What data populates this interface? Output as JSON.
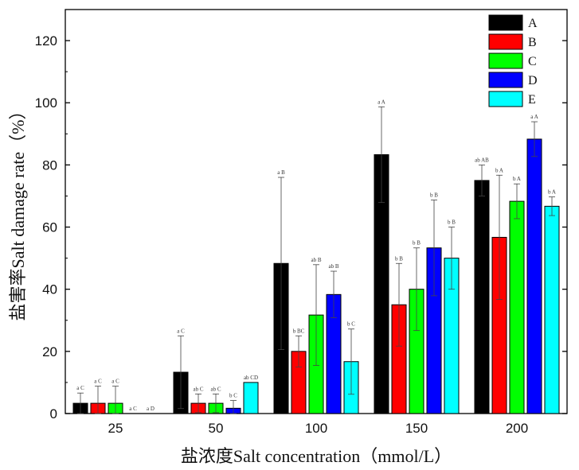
{
  "chart_data": {
    "type": "bar",
    "xlabel": "盐浓度Salt concentration（mmol/L）",
    "ylabel": "盐害率Salt damage rate（%）",
    "categories": [
      "25",
      "50",
      "100",
      "150",
      "200"
    ],
    "ylim": [
      0,
      130
    ],
    "yticks": [
      0,
      20,
      40,
      60,
      80,
      100,
      120
    ],
    "legend_position": "top-right",
    "series": [
      {
        "name": "A",
        "color": "#000000",
        "values": [
          3.3,
          13.3,
          48.3,
          83.3,
          75.0
        ],
        "error": [
          3.3,
          11.7,
          27.7,
          15.4,
          5.0
        ],
        "labels": [
          "a C",
          "a C",
          "a B",
          "a A",
          "ab AB"
        ]
      },
      {
        "name": "B",
        "color": "#ff0000",
        "values": [
          3.3,
          3.3,
          20.0,
          35.0,
          56.7
        ],
        "error": [
          5.5,
          3.0,
          5.0,
          13.3,
          20.0
        ],
        "labels": [
          "a C",
          "ab C",
          "b BC",
          "b B",
          "b A"
        ]
      },
      {
        "name": "C",
        "color": "#00ff00",
        "values": [
          3.3,
          3.3,
          31.7,
          40.0,
          68.3
        ],
        "error": [
          5.5,
          3.0,
          16.2,
          13.3,
          5.6
        ],
        "labels": [
          "a C",
          "ab C",
          "ab B",
          "b B",
          "b A"
        ]
      },
      {
        "name": "D",
        "color": "#0000ff",
        "values": [
          0,
          1.7,
          38.3,
          53.3,
          88.3
        ],
        "error": [
          0,
          2.5,
          7.5,
          15.4,
          5.6
        ],
        "labels": [
          "a C",
          "b C",
          "ab B",
          "b B",
          "a A"
        ]
      },
      {
        "name": "E",
        "color": "#00ffff",
        "values": [
          0,
          10.0,
          16.7,
          50.0,
          66.7
        ],
        "error": [
          0,
          0,
          10.5,
          10.0,
          3.0
        ],
        "labels": [
          "a D",
          "ab CD",
          "b C",
          "b B",
          "b A"
        ]
      }
    ]
  }
}
